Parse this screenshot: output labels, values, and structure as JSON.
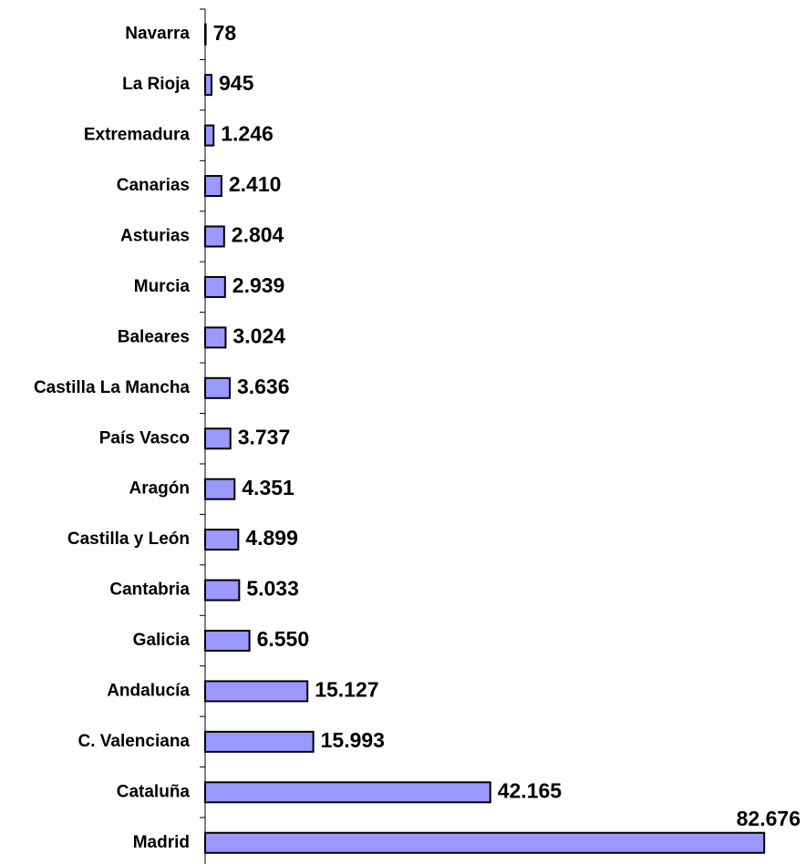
{
  "chart_data": {
    "type": "barh",
    "categories": [
      "Navarra",
      "La Rioja",
      "Extremadura",
      "Canarias",
      "Asturias",
      "Murcia",
      "Baleares",
      "Castilla La Mancha",
      "País Vasco",
      "Aragón",
      "Castilla y León",
      "Cantabria",
      "Galicia",
      "Andalucía",
      "C. Valenciana",
      "Cataluña",
      "Madrid"
    ],
    "values": [
      78,
      945,
      1246,
      2410,
      2804,
      2939,
      3024,
      3636,
      3737,
      4351,
      4899,
      5033,
      6550,
      15127,
      15993,
      42165,
      82676
    ],
    "value_labels": [
      "78",
      "945",
      "1.246",
      "2.410",
      "2.804",
      "2.939",
      "3.024",
      "3.636",
      "3.737",
      "4.351",
      "4.899",
      "5.033",
      "6.550",
      "15.127",
      "15.993",
      "42.165",
      "82.676"
    ],
    "color": "#9999ff",
    "xlim": [
      0,
      84000
    ]
  }
}
